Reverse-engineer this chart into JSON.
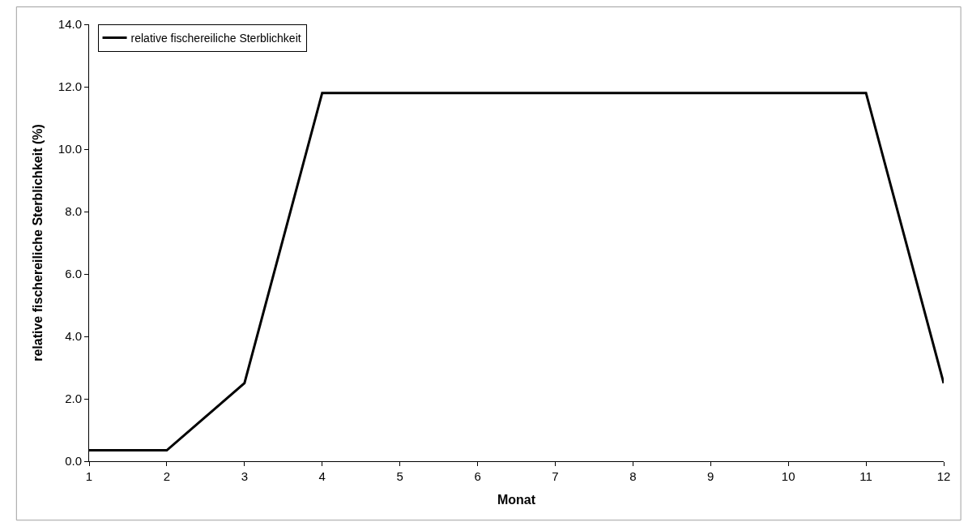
{
  "chart_data": {
    "type": "line",
    "xlabel": "Monat",
    "ylabel": "relative fischereiliche Sterblichkeit (%)",
    "x": [
      1,
      2,
      3,
      4,
      5,
      6,
      7,
      8,
      9,
      10,
      11,
      12
    ],
    "series": [
      {
        "name": "relative fischereiliche Sterblichkeit",
        "color": "#000000",
        "values": [
          0.35,
          0.35,
          2.5,
          11.8,
          11.8,
          11.8,
          11.8,
          11.8,
          11.8,
          11.8,
          11.8,
          2.5
        ]
      }
    ],
    "xlim": [
      1,
      12
    ],
    "xticks": [
      1,
      2,
      3,
      4,
      5,
      6,
      7,
      8,
      9,
      10,
      11,
      12
    ],
    "ylim": [
      0,
      14
    ],
    "yticks": [
      {
        "value": 0,
        "label": "0.0"
      },
      {
        "value": 2,
        "label": "2.0"
      },
      {
        "value": 4,
        "label": "4.0"
      },
      {
        "value": 6,
        "label": "6.0"
      },
      {
        "value": 8,
        "label": "8.0"
      },
      {
        "value": 10,
        "label": "10.0"
      },
      {
        "value": 12,
        "label": "12.0"
      },
      {
        "value": 14,
        "label": "14.0"
      }
    ],
    "grid": false,
    "legend": "top left",
    "marker": "none",
    "line_style": "solid"
  }
}
